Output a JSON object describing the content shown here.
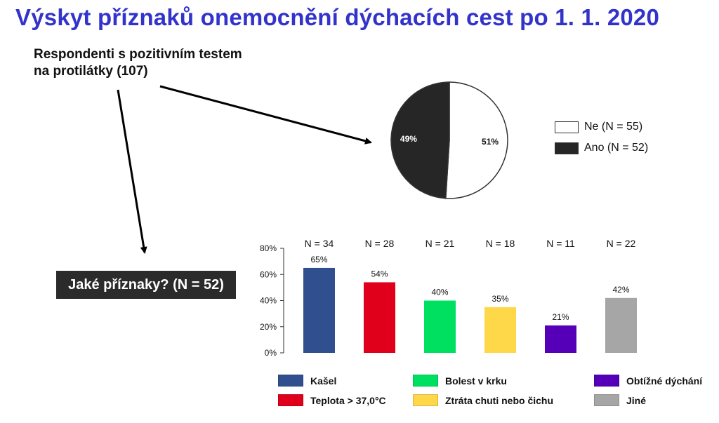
{
  "title": "Výskyt příznaků onemocnění dýchacích cest po 1. 1. 2020",
  "respondents_label": "Respondenti s pozitivním testem na protilátky (107)",
  "question_label": "Jaké příznaky? (N = 52)",
  "colors": {
    "title": "#3333cc",
    "pie_ne": "#ffffff",
    "pie_ano": "#262626"
  },
  "chart_data": [
    {
      "type": "pie",
      "slices": [
        {
          "label": "Ne (N = 55)",
          "value": 51,
          "value_label": "51%",
          "color": "#ffffff"
        },
        {
          "label": "Ano (N = 52)",
          "value": 49,
          "value_label": "49%",
          "color": "#262626"
        }
      ],
      "legend": "right"
    },
    {
      "type": "bar",
      "categories": [
        "Kašel",
        "Teplota > 37,0°C",
        "Bolest v krku",
        "Ztráta chuti nebo čichu",
        "Obtížné dýchání",
        "Jiné"
      ],
      "values": [
        65,
        54,
        40,
        35,
        21,
        42
      ],
      "value_labels": [
        "65%",
        "54%",
        "40%",
        "35%",
        "21%",
        "42%"
      ],
      "n_labels": [
        "N = 34",
        "N = 28",
        "N = 21",
        "N = 18",
        "N = 11",
        "N = 22"
      ],
      "colors": [
        "#2f4f8f",
        "#e0001b",
        "#00e060",
        "#ffd84a",
        "#5500b8",
        "#a6a6a6"
      ],
      "ylim": [
        0,
        80
      ],
      "yticks": [
        "0%",
        "20%",
        "40%",
        "60%",
        "80%"
      ],
      "legend": "bottom",
      "grid": false
    }
  ]
}
